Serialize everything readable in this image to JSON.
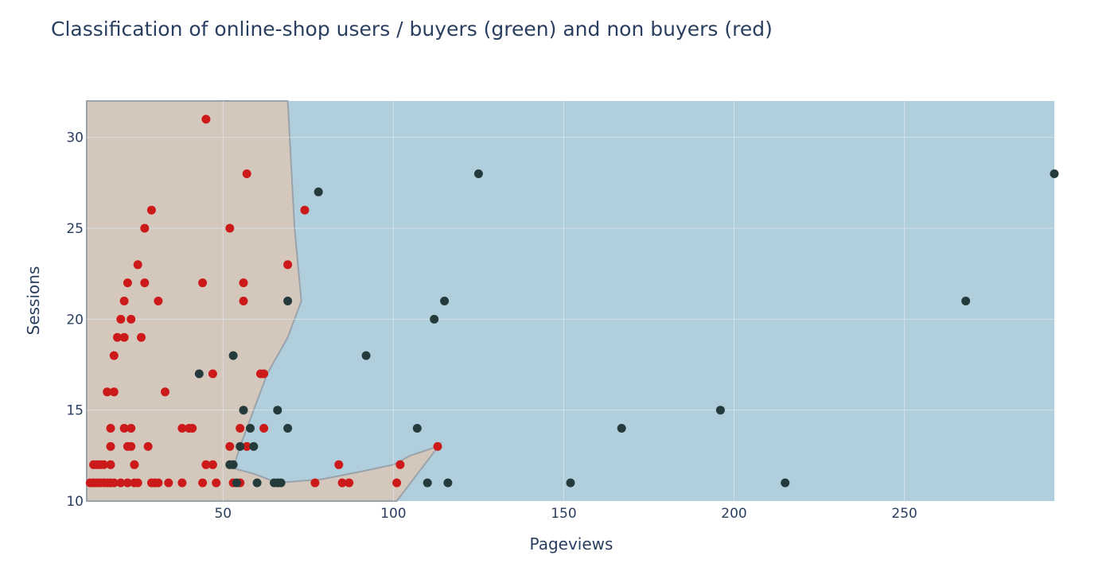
{
  "chart_data": {
    "type": "scatter",
    "title": "Classification of online-shop users / buyers (green) and non buyers (red)",
    "xlabel": "Pageviews",
    "ylabel": "Sessions",
    "xlim": [
      10,
      294
    ],
    "ylim": [
      10,
      32
    ],
    "x_ticks": [
      50,
      100,
      150,
      200,
      250
    ],
    "y_ticks": [
      10,
      15,
      20,
      25,
      30
    ],
    "grid": true,
    "colors": {
      "non_buyer_region": "#d4c7bb",
      "buyer_region": "#b1cedd",
      "boundary": "#9aa3aa",
      "non_buyer_point": "#cc1a1a",
      "buyer_point": "#253b3b",
      "grid": "#dfe8ef",
      "text": "#2a3f5f"
    },
    "regions": {
      "non_buyer_polygon": [
        [
          10,
          32
        ],
        [
          69,
          32
        ],
        [
          71,
          25
        ],
        [
          73,
          21
        ],
        [
          69,
          19
        ],
        [
          63,
          17
        ],
        [
          59,
          15
        ],
        [
          55,
          13
        ],
        [
          53,
          11.8
        ],
        [
          59,
          11.5
        ],
        [
          66,
          11
        ],
        [
          79,
          11.2
        ],
        [
          90,
          11.6
        ],
        [
          100,
          12
        ],
        [
          105,
          12.5
        ],
        [
          113,
          13
        ],
        [
          114,
          13.2
        ],
        [
          101,
          10
        ],
        [
          10,
          10
        ]
      ]
    },
    "series": [
      {
        "class": "non_buyer",
        "points": [
          [
            11,
            11
          ],
          [
            12,
            11
          ],
          [
            13,
            11
          ],
          [
            14,
            11
          ],
          [
            15,
            11
          ],
          [
            16,
            11
          ],
          [
            17,
            11
          ],
          [
            18,
            11
          ],
          [
            20,
            11
          ],
          [
            22,
            11
          ],
          [
            24,
            11
          ],
          [
            25,
            11
          ],
          [
            29,
            11
          ],
          [
            30,
            11
          ],
          [
            31,
            11
          ],
          [
            34,
            11
          ],
          [
            38,
            11
          ],
          [
            44,
            11
          ],
          [
            48,
            11
          ],
          [
            53,
            11
          ],
          [
            55,
            11
          ],
          [
            77,
            11
          ],
          [
            85,
            11
          ],
          [
            87,
            11
          ],
          [
            101,
            11
          ],
          [
            12,
            12
          ],
          [
            13,
            12
          ],
          [
            14,
            12
          ],
          [
            15,
            12
          ],
          [
            17,
            12
          ],
          [
            24,
            12
          ],
          [
            45,
            12
          ],
          [
            47,
            12
          ],
          [
            84,
            12
          ],
          [
            102,
            12
          ],
          [
            17,
            13
          ],
          [
            22,
            13
          ],
          [
            23,
            13
          ],
          [
            28,
            13
          ],
          [
            52,
            13
          ],
          [
            57,
            13
          ],
          [
            113,
            13
          ],
          [
            17,
            14
          ],
          [
            21,
            14
          ],
          [
            23,
            14
          ],
          [
            38,
            14
          ],
          [
            40,
            14
          ],
          [
            41,
            14
          ],
          [
            55,
            14
          ],
          [
            62,
            14
          ],
          [
            16,
            16
          ],
          [
            18,
            16
          ],
          [
            33,
            16
          ],
          [
            47,
            17
          ],
          [
            61,
            17
          ],
          [
            62,
            17
          ],
          [
            18,
            18
          ],
          [
            19,
            19
          ],
          [
            21,
            19
          ],
          [
            26,
            19
          ],
          [
            20,
            20
          ],
          [
            23,
            20
          ],
          [
            21,
            21
          ],
          [
            31,
            21
          ],
          [
            56,
            21
          ],
          [
            22,
            22
          ],
          [
            27,
            22
          ],
          [
            44,
            22
          ],
          [
            56,
            22
          ],
          [
            25,
            23
          ],
          [
            69,
            23
          ],
          [
            27,
            25
          ],
          [
            52,
            25
          ],
          [
            29,
            26
          ],
          [
            74,
            26
          ],
          [
            57,
            28
          ],
          [
            45,
            31
          ]
        ]
      },
      {
        "class": "buyer",
        "points": [
          [
            43,
            17
          ],
          [
            53,
            18
          ],
          [
            52,
            12
          ],
          [
            53,
            12
          ],
          [
            54,
            11
          ],
          [
            55,
            13
          ],
          [
            56,
            15
          ],
          [
            58,
            14
          ],
          [
            59,
            13
          ],
          [
            60,
            11
          ],
          [
            65,
            11
          ],
          [
            66,
            11
          ],
          [
            67,
            11
          ],
          [
            66,
            15
          ],
          [
            69,
            14
          ],
          [
            69,
            21
          ],
          [
            78,
            27
          ],
          [
            92,
            18
          ],
          [
            107,
            14
          ],
          [
            110,
            11
          ],
          [
            112,
            20
          ],
          [
            115,
            21
          ],
          [
            116,
            11
          ],
          [
            125,
            28
          ],
          [
            152,
            11
          ],
          [
            167,
            14
          ],
          [
            196,
            15
          ],
          [
            215,
            11
          ],
          [
            268,
            21
          ],
          [
            294,
            28
          ]
        ]
      }
    ]
  }
}
